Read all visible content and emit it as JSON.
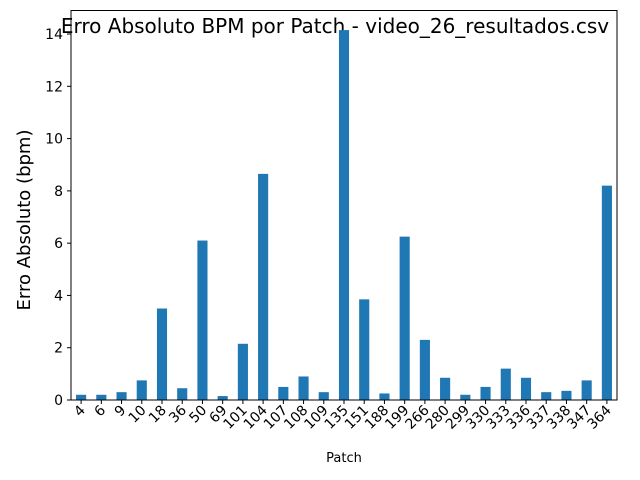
{
  "chart_data": {
    "type": "bar",
    "title": "Erro Absoluto BPM por Patch - video_26_resultados.csv",
    "xlabel": "Patch",
    "ylabel": "Erro Absoluto (bpm)",
    "ylim": [
      0,
      14.9
    ],
    "yticks": [
      0,
      2,
      4,
      6,
      8,
      10,
      12,
      14
    ],
    "grid": false,
    "bar_color": "#1f77b4",
    "categories": [
      "4",
      "6",
      "9",
      "10",
      "18",
      "36",
      "50",
      "69",
      "101",
      "104",
      "107",
      "108",
      "109",
      "135",
      "151",
      "188",
      "199",
      "266",
      "280",
      "299",
      "330",
      "333",
      "336",
      "337",
      "338",
      "347",
      "364"
    ],
    "values": [
      0.2,
      0.2,
      0.3,
      0.75,
      3.5,
      0.45,
      6.1,
      0.15,
      2.15,
      8.65,
      0.5,
      0.9,
      0.3,
      14.15,
      3.85,
      0.25,
      6.25,
      2.3,
      0.85,
      0.2,
      0.5,
      1.2,
      0.85,
      0.3,
      0.35,
      0.75,
      8.2
    ]
  }
}
